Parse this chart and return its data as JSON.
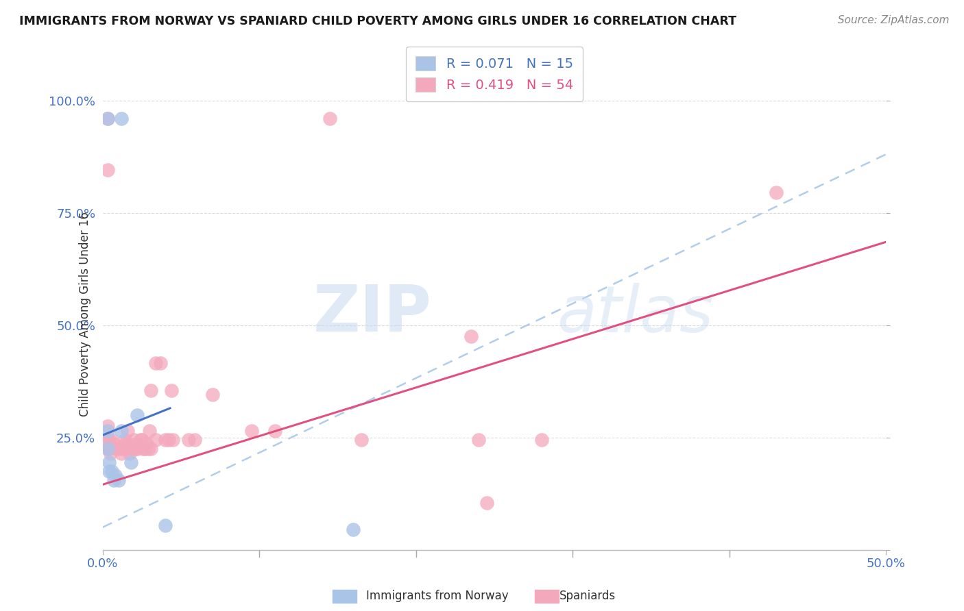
{
  "title": "IMMIGRANTS FROM NORWAY VS SPANIARD CHILD POVERTY AMONG GIRLS UNDER 16 CORRELATION CHART",
  "source": "Source: ZipAtlas.com",
  "ylabel": "Child Poverty Among Girls Under 16",
  "xlim": [
    0.0,
    0.5
  ],
  "ylim": [
    0.0,
    1.05
  ],
  "norway_R": 0.071,
  "norway_N": 15,
  "spain_R": 0.419,
  "spain_N": 54,
  "norway_color": "#aac4e8",
  "norway_line_color": "#4472c4",
  "spain_color": "#f4a8bc",
  "spain_line_color": "#e05080",
  "norway_line_x": [
    0.0,
    0.043
  ],
  "norway_line_y": [
    0.255,
    0.315
  ],
  "spain_line_x": [
    0.0,
    0.5
  ],
  "spain_line_y": [
    0.145,
    0.685
  ],
  "dash_line_x": [
    0.0,
    0.5
  ],
  "dash_line_y": [
    0.05,
    0.88
  ],
  "norway_scatter": [
    [
      0.003,
      0.96
    ],
    [
      0.012,
      0.96
    ],
    [
      0.003,
      0.265
    ],
    [
      0.003,
      0.225
    ],
    [
      0.004,
      0.195
    ],
    [
      0.004,
      0.175
    ],
    [
      0.006,
      0.175
    ],
    [
      0.007,
      0.155
    ],
    [
      0.008,
      0.165
    ],
    [
      0.01,
      0.155
    ],
    [
      0.012,
      0.265
    ],
    [
      0.018,
      0.195
    ],
    [
      0.022,
      0.3
    ],
    [
      0.04,
      0.055
    ],
    [
      0.16,
      0.045
    ]
  ],
  "spain_scatter": [
    [
      0.003,
      0.96
    ],
    [
      0.145,
      0.96
    ],
    [
      0.003,
      0.845
    ],
    [
      0.003,
      0.275
    ],
    [
      0.003,
      0.245
    ],
    [
      0.003,
      0.225
    ],
    [
      0.004,
      0.245
    ],
    [
      0.004,
      0.225
    ],
    [
      0.005,
      0.215
    ],
    [
      0.006,
      0.245
    ],
    [
      0.007,
      0.235
    ],
    [
      0.009,
      0.225
    ],
    [
      0.01,
      0.225
    ],
    [
      0.012,
      0.215
    ],
    [
      0.013,
      0.225
    ],
    [
      0.014,
      0.235
    ],
    [
      0.014,
      0.245
    ],
    [
      0.015,
      0.225
    ],
    [
      0.016,
      0.265
    ],
    [
      0.016,
      0.235
    ],
    [
      0.017,
      0.215
    ],
    [
      0.018,
      0.225
    ],
    [
      0.019,
      0.225
    ],
    [
      0.02,
      0.245
    ],
    [
      0.021,
      0.225
    ],
    [
      0.022,
      0.225
    ],
    [
      0.022,
      0.235
    ],
    [
      0.024,
      0.245
    ],
    [
      0.025,
      0.245
    ],
    [
      0.026,
      0.225
    ],
    [
      0.027,
      0.225
    ],
    [
      0.028,
      0.235
    ],
    [
      0.029,
      0.225
    ],
    [
      0.03,
      0.265
    ],
    [
      0.031,
      0.355
    ],
    [
      0.031,
      0.225
    ],
    [
      0.034,
      0.245
    ],
    [
      0.034,
      0.415
    ],
    [
      0.037,
      0.415
    ],
    [
      0.04,
      0.245
    ],
    [
      0.042,
      0.245
    ],
    [
      0.044,
      0.355
    ],
    [
      0.045,
      0.245
    ],
    [
      0.055,
      0.245
    ],
    [
      0.059,
      0.245
    ],
    [
      0.07,
      0.345
    ],
    [
      0.095,
      0.265
    ],
    [
      0.11,
      0.265
    ],
    [
      0.165,
      0.245
    ],
    [
      0.235,
      0.475
    ],
    [
      0.24,
      0.245
    ],
    [
      0.245,
      0.105
    ],
    [
      0.28,
      0.245
    ],
    [
      0.43,
      0.795
    ]
  ],
  "watermark_zip": "ZIP",
  "watermark_atlas": "atlas",
  "background_color": "#ffffff",
  "grid_color": "#d8d8d8"
}
